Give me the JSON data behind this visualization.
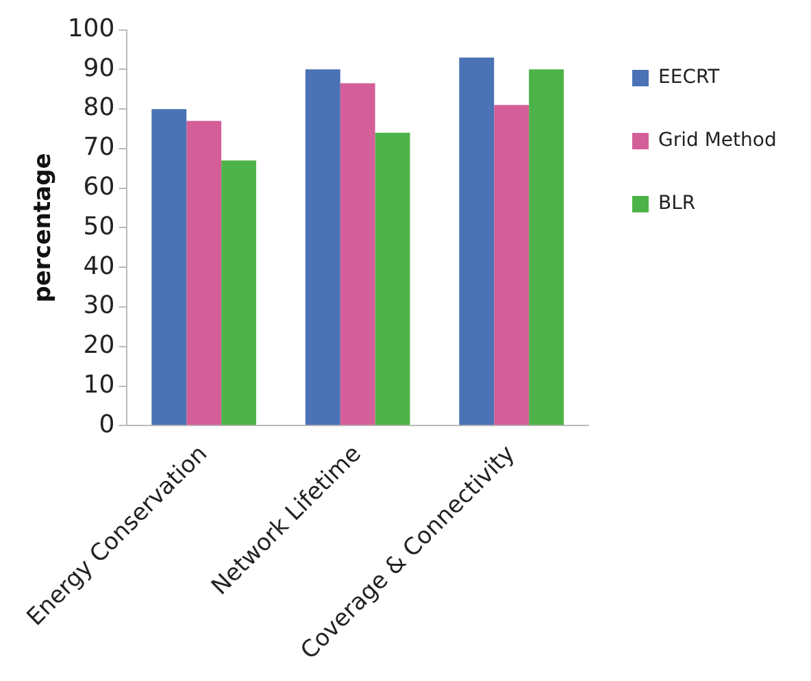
{
  "chart_data": {
    "type": "bar",
    "ylabel": "percentage",
    "categories": [
      "Energy Conservation",
      "Network Lifetime",
      "Coverage & Connectivity"
    ],
    "series": [
      {
        "name": "EECRT",
        "color": "#4a72b4",
        "values": [
          80,
          90,
          93
        ]
      },
      {
        "name": "Grid Method",
        "color": "#d45e98",
        "values": [
          77,
          86.5,
          81
        ]
      },
      {
        "name": "BLR",
        "color": "#4db348",
        "values": [
          67,
          74,
          90
        ]
      }
    ],
    "ylim": [
      0,
      100
    ],
    "yticks": [
      0,
      10,
      20,
      30,
      40,
      50,
      60,
      70,
      80,
      90,
      100
    ],
    "grid": false,
    "legend": "right"
  }
}
